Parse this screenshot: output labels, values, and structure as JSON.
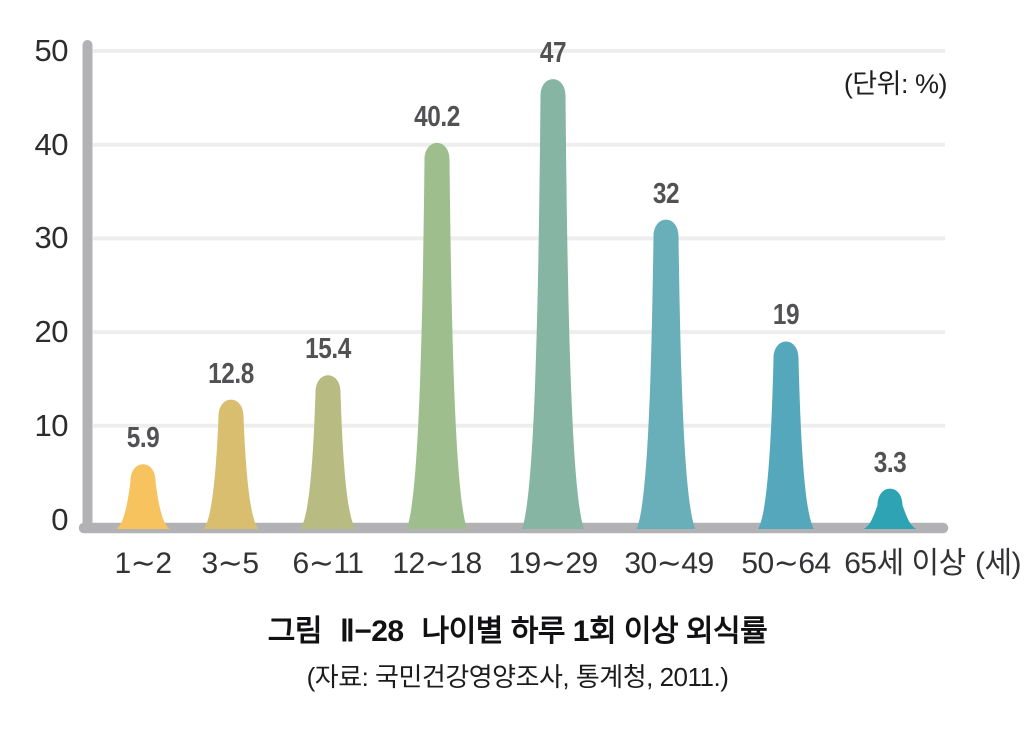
{
  "chart_data": {
    "type": "bar",
    "title": "나이별 하루 1회 이상 외식률",
    "unit_label": "(단위: %)",
    "x_axis_unit_label": "(세)",
    "categories": [
      "1∼2",
      "3∼5",
      "6∼11",
      "12∼18",
      "19∼29",
      "30∼49",
      "50∼64",
      "65세 이상"
    ],
    "values": [
      5.9,
      12.8,
      15.4,
      40.2,
      47,
      32,
      19,
      3.3
    ],
    "value_labels": [
      "5.9",
      "12.8",
      "15.4",
      "40.2",
      "47",
      "32",
      "19",
      "3.3"
    ],
    "bar_colors": [
      "#F6C35F",
      "#D8BE6E",
      "#B9BC82",
      "#9FBE8D",
      "#86B6A3",
      "#68AFBA",
      "#55A8BB",
      "#2EA3B4"
    ],
    "y_ticks": [
      0,
      10,
      20,
      30,
      40,
      50
    ],
    "ylim": [
      0,
      50
    ],
    "grid": true,
    "legend": false,
    "axis_color": "#B2B2B4",
    "gridline_color": "#EEEEEF",
    "value_label_color": "#525254",
    "tick_label_color": "#2D2D2E"
  },
  "caption": {
    "figure_label": "그림",
    "figure_number": "Ⅱ−28",
    "title": "나이별 하루 1회 이상 외식률",
    "source": "(자료: 국민건강영양조사, 통계청, 2011.)"
  }
}
